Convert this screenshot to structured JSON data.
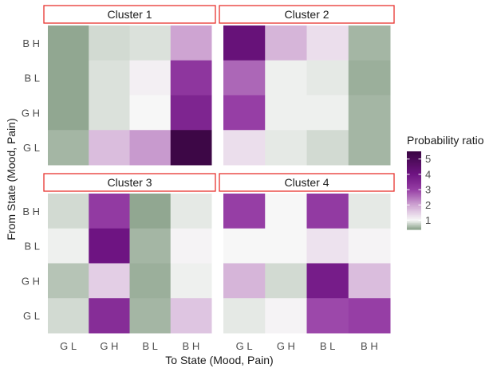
{
  "chart_data": {
    "type": "heatmap",
    "xlabel": "To State (Mood, Pain)",
    "ylabel": "From State (Mood, Pain)",
    "x_categories": [
      "G L",
      "G H",
      "B L",
      "B H"
    ],
    "y_categories": [
      "B H",
      "B L",
      "G H",
      "G L"
    ],
    "legend": {
      "title": "Probability ratio",
      "ticks": [
        "5",
        "4",
        "3",
        "2",
        "1"
      ],
      "range": [
        0.4,
        5.5
      ]
    },
    "panels": [
      {
        "title": "Cluster 1",
        "values": [
          [
            0.45,
            0.8,
            0.85,
            2.0
          ],
          [
            0.45,
            0.85,
            1.1,
            3.2
          ],
          [
            0.45,
            0.85,
            1.0,
            3.6
          ],
          [
            0.55,
            1.7,
            2.1,
            5.4
          ]
        ]
      },
      {
        "title": "Cluster 2",
        "values": [
          [
            4.2,
            1.8,
            1.3,
            0.55
          ],
          [
            2.6,
            0.95,
            0.9,
            0.5
          ],
          [
            3.0,
            0.95,
            0.95,
            0.55
          ],
          [
            1.3,
            0.9,
            0.8,
            0.55
          ]
        ]
      },
      {
        "title": "Cluster 3",
        "values": [
          [
            0.8,
            3.1,
            0.45,
            0.9
          ],
          [
            0.95,
            4.0,
            0.55,
            1.05
          ],
          [
            0.65,
            1.5,
            0.5,
            0.95
          ],
          [
            0.8,
            3.4,
            0.55,
            1.6
          ]
        ]
      },
      {
        "title": "Cluster 4",
        "values": [
          [
            3.0,
            1.0,
            3.1,
            0.9
          ],
          [
            1.0,
            1.0,
            1.25,
            1.05
          ],
          [
            1.8,
            0.8,
            3.8,
            1.7
          ],
          [
            0.9,
            1.05,
            2.9,
            3.0
          ]
        ]
      }
    ]
  }
}
